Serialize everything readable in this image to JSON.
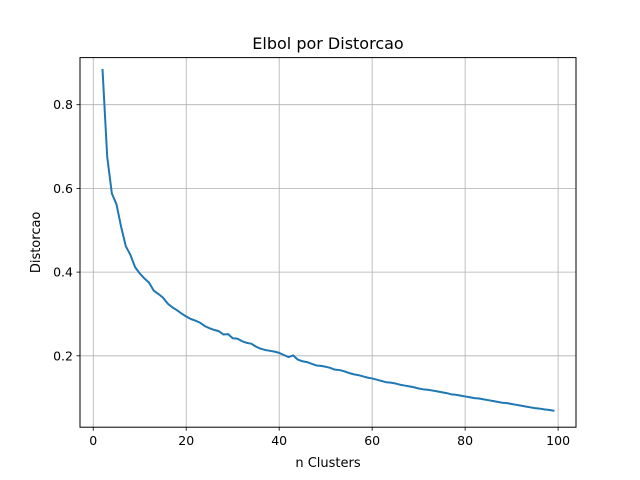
{
  "chart_data": {
    "type": "line",
    "title": "Elbol por Distorcao",
    "xlabel": "n Clusters",
    "ylabel": "Distorcao",
    "xlim": [
      -2.85,
      103.85
    ],
    "ylim": [
      0.0295,
      0.9125
    ],
    "xticks": [
      0,
      20,
      40,
      60,
      80,
      100
    ],
    "xtick_labels": [
      "0",
      "20",
      "40",
      "60",
      "80",
      "100"
    ],
    "yticks": [
      0.2,
      0.4,
      0.6,
      0.8
    ],
    "ytick_labels": [
      "0.2",
      "0.4",
      "0.6",
      "0.8"
    ],
    "grid": true,
    "series": [
      {
        "color": "#1f77b4",
        "x": [
          2,
          3,
          4,
          5,
          6,
          7,
          8,
          9,
          10,
          11,
          12,
          13,
          14,
          15,
          16,
          17,
          18,
          19,
          20,
          21,
          22,
          23,
          24,
          25,
          26,
          27,
          28,
          29,
          30,
          31,
          32,
          33,
          34,
          35,
          36,
          37,
          38,
          39,
          40,
          41,
          42,
          43,
          44,
          45,
          46,
          47,
          48,
          49,
          50,
          51,
          52,
          53,
          54,
          55,
          56,
          57,
          58,
          59,
          60,
          61,
          62,
          63,
          64,
          65,
          66,
          67,
          68,
          69,
          70,
          71,
          72,
          73,
          74,
          75,
          76,
          77,
          78,
          79,
          80,
          81,
          82,
          83,
          84,
          85,
          86,
          87,
          88,
          89,
          90,
          91,
          92,
          93,
          94,
          95,
          96,
          97,
          98,
          99
        ],
        "y": [
          0.883,
          0.676,
          0.588,
          0.562,
          0.508,
          0.462,
          0.441,
          0.412,
          0.397,
          0.385,
          0.375,
          0.356,
          0.348,
          0.339,
          0.325,
          0.316,
          0.309,
          0.301,
          0.294,
          0.288,
          0.284,
          0.279,
          0.271,
          0.266,
          0.262,
          0.259,
          0.251,
          0.252,
          0.242,
          0.241,
          0.235,
          0.231,
          0.229,
          0.222,
          0.217,
          0.214,
          0.212,
          0.21,
          0.207,
          0.202,
          0.197,
          0.201,
          0.191,
          0.187,
          0.185,
          0.181,
          0.177,
          0.176,
          0.174,
          0.171,
          0.167,
          0.166,
          0.163,
          0.159,
          0.156,
          0.154,
          0.151,
          0.148,
          0.146,
          0.143,
          0.14,
          0.137,
          0.136,
          0.134,
          0.131,
          0.129,
          0.127,
          0.125,
          0.122,
          0.12,
          0.119,
          0.117,
          0.115,
          0.113,
          0.111,
          0.108,
          0.107,
          0.105,
          0.103,
          0.101,
          0.099,
          0.098,
          0.096,
          0.094,
          0.092,
          0.09,
          0.088,
          0.087,
          0.085,
          0.083,
          0.081,
          0.079,
          0.077,
          0.075,
          0.074,
          0.072,
          0.071,
          0.069
        ]
      }
    ]
  }
}
